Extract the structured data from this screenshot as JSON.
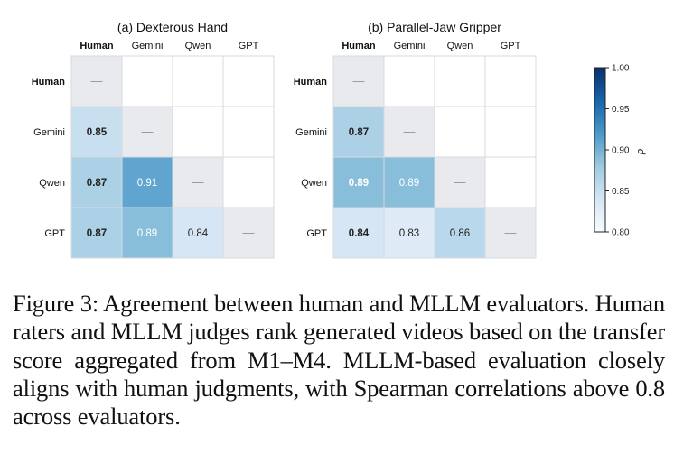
{
  "chart_data": [
    {
      "type": "heatmap",
      "title": "(a) Dexterous Hand",
      "rows": [
        "Human",
        "Gemini",
        "Qwen",
        "GPT"
      ],
      "cols": [
        "Human",
        "Gemini",
        "Qwen",
        "GPT"
      ],
      "cells": [
        {
          "row": "Gemini",
          "col": "Human",
          "value": 0.85,
          "label": "0.85"
        },
        {
          "row": "Qwen",
          "col": "Human",
          "value": 0.87,
          "label": "0.87"
        },
        {
          "row": "Qwen",
          "col": "Gemini",
          "value": 0.91,
          "label": "0.91"
        },
        {
          "row": "GPT",
          "col": "Human",
          "value": 0.87,
          "label": "0.87"
        },
        {
          "row": "GPT",
          "col": "Gemini",
          "value": 0.89,
          "label": "0.89"
        },
        {
          "row": "GPT",
          "col": "Qwen",
          "value": 0.84,
          "label": "0.84"
        }
      ],
      "diagonal_label": "—",
      "bold_label": "Human"
    },
    {
      "type": "heatmap",
      "title": "(b) Parallel-Jaw Gripper",
      "rows": [
        "Human",
        "Gemini",
        "Qwen",
        "GPT"
      ],
      "cols": [
        "Human",
        "Gemini",
        "Qwen",
        "GPT"
      ],
      "cells": [
        {
          "row": "Gemini",
          "col": "Human",
          "value": 0.87,
          "label": "0.87"
        },
        {
          "row": "Qwen",
          "col": "Human",
          "value": 0.89,
          "label": "0.89"
        },
        {
          "row": "Qwen",
          "col": "Gemini",
          "value": 0.89,
          "label": "0.89"
        },
        {
          "row": "GPT",
          "col": "Human",
          "value": 0.84,
          "label": "0.84"
        },
        {
          "row": "GPT",
          "col": "Gemini",
          "value": 0.83,
          "label": "0.83"
        },
        {
          "row": "GPT",
          "col": "Qwen",
          "value": 0.86,
          "label": "0.86"
        }
      ],
      "diagonal_label": "—",
      "bold_label": "Human"
    }
  ],
  "colorbar": {
    "min": 0.8,
    "max": 1.0,
    "ticks": [
      "0.80",
      "0.85",
      "0.90",
      "0.95",
      "1.00"
    ],
    "label": "ρ",
    "colors": [
      "#f7fbff",
      "#d6e6f4",
      "#9ecae1",
      "#4a98c9",
      "#1764ab",
      "#08306b"
    ]
  },
  "colors": {
    "diagonal": "#e8eaed",
    "empty": "#ffffff",
    "grid": "#d6d9de",
    "text_dark": "#222222",
    "text_light": "#ffffff"
  },
  "caption": "Figure 3: Agreement between human and MLLM evaluators. Human raters and MLLM judges rank generated videos based on the transfer score aggregated from M1–M4. MLLM-based evaluation closely aligns with human judgments, with Spearman correlations above 0.8 across evaluators."
}
